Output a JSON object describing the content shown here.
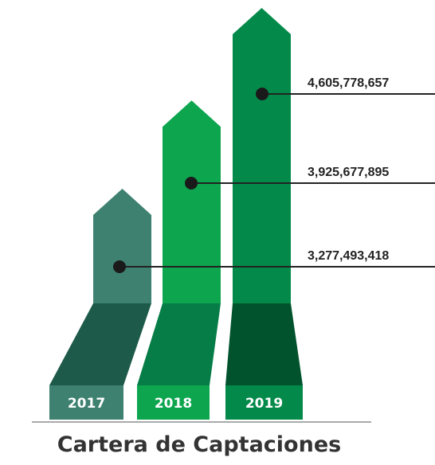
{
  "chart_data": {
    "type": "bar",
    "title": "Cartera de Captaciones",
    "categories": [
      "2017",
      "2018",
      "2019"
    ],
    "values": [
      3277493418,
      3925677895,
      4605778657
    ],
    "value_labels": [
      "3,277,493,418",
      "3,925,677,895",
      "4,605,778,657"
    ],
    "colors": {
      "bar": [
        "#3e8170",
        "#0da54e",
        "#038a4a"
      ],
      "base": [
        "#1d5a49",
        "#067d47",
        "#00532c"
      ],
      "label_box": [
        "#3e8170",
        "#0da54e",
        "#038a4a"
      ]
    },
    "legend": "none",
    "grid": false
  }
}
